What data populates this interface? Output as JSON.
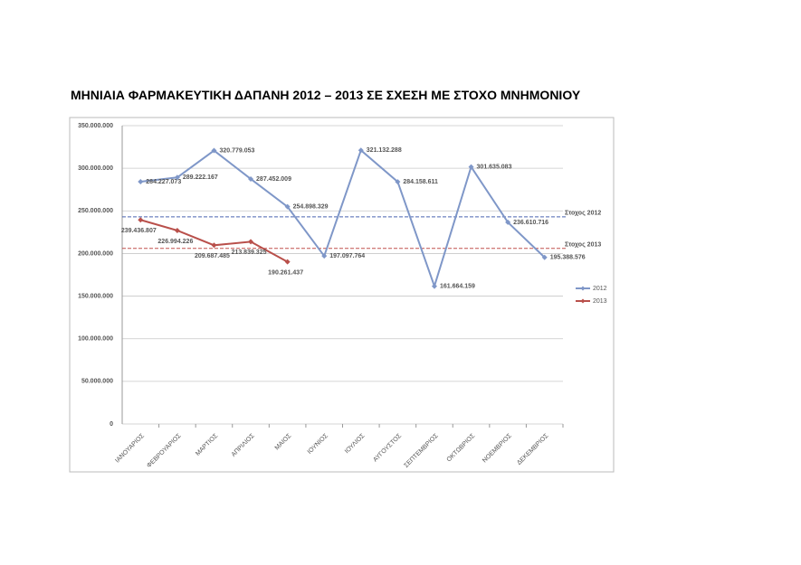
{
  "chart_data": {
    "type": "line",
    "title": "ΜΗΝΙΑΙΑ ΦΑΡΜΑΚΕΥΤΙΚΗ ΔΑΠΑΝΗ 2012 – 2013 ΣΕ ΣΧΕΣΗ ΜΕ ΣΤΟΧΟ ΜΝΗΜΟΝΙΟΥ",
    "categories": [
      "ΙΑΝΟΥΑΡΙΟΣ",
      "ΦΕΒΡΟΥΑΡΙΟΣ",
      "ΜΑΡΤΙΟΣ",
      "ΑΠΡΙΛΙΟΣ",
      "ΜΑΙΟΣ",
      "ΙΟΥΝΙΟΣ",
      "ΙΟΥΛΙΟΣ",
      "ΑΥΓΟΥΣΤΟΣ",
      "ΣΕΠΤΕΜΒΡΙΟΣ",
      "ΟΚΤΩΒΡΙΟΣ",
      "ΝΟΕΜΒΡΙΟΣ",
      "ΔΕΚΕΜΒΡΙΟΣ"
    ],
    "series": [
      {
        "name": "2012",
        "color": "#7f97c8",
        "values": [
          284227073,
          289222167,
          320779053,
          287452009,
          254898329,
          197097764,
          321132288,
          284158611,
          161664159,
          301635083,
          236610716,
          195388576
        ],
        "value_labels": [
          "284.227.073",
          "289.222.167",
          "320.779.053",
          "287.452.009",
          "254.898.329",
          "197.097.764",
          "321.132.288",
          "284.158.611",
          "161.664.159",
          "301.635.083",
          "236.610.716",
          "195.388.576"
        ]
      },
      {
        "name": "2013",
        "color": "#b9504b",
        "values": [
          239436807,
          226994226,
          209687485,
          213839325,
          190261437,
          null,
          null,
          null,
          null,
          null,
          null,
          null
        ],
        "value_labels": [
          "239.436.807",
          "226.994.226",
          "209.687.485",
          "213.839.325",
          "190.261.437",
          null,
          null,
          null,
          null,
          null,
          null,
          null
        ]
      }
    ],
    "ylim": [
      0,
      350000000
    ],
    "yticks": [
      0,
      {
        "value": 50000000,
        "label": "50.000.000"
      },
      {
        "value": 100000000,
        "label": "100.000.000"
      },
      {
        "value": 150000000,
        "label": "150.000.000"
      },
      {
        "value": 200000000,
        "label": "200.000.000"
      },
      {
        "value": 250000000,
        "label": "250.000.000"
      },
      {
        "value": 300000000,
        "label": "300.000.000"
      },
      {
        "value": 350000000,
        "label": "350.000.000"
      }
    ],
    "grid": true,
    "legend": "right",
    "annotations": [
      {
        "label": "Στοχος 2012",
        "value": 243000000,
        "color": "#4a63b0"
      },
      {
        "label": "Στοχος 2013",
        "value": 206000000,
        "color": "#c0504d"
      }
    ]
  }
}
